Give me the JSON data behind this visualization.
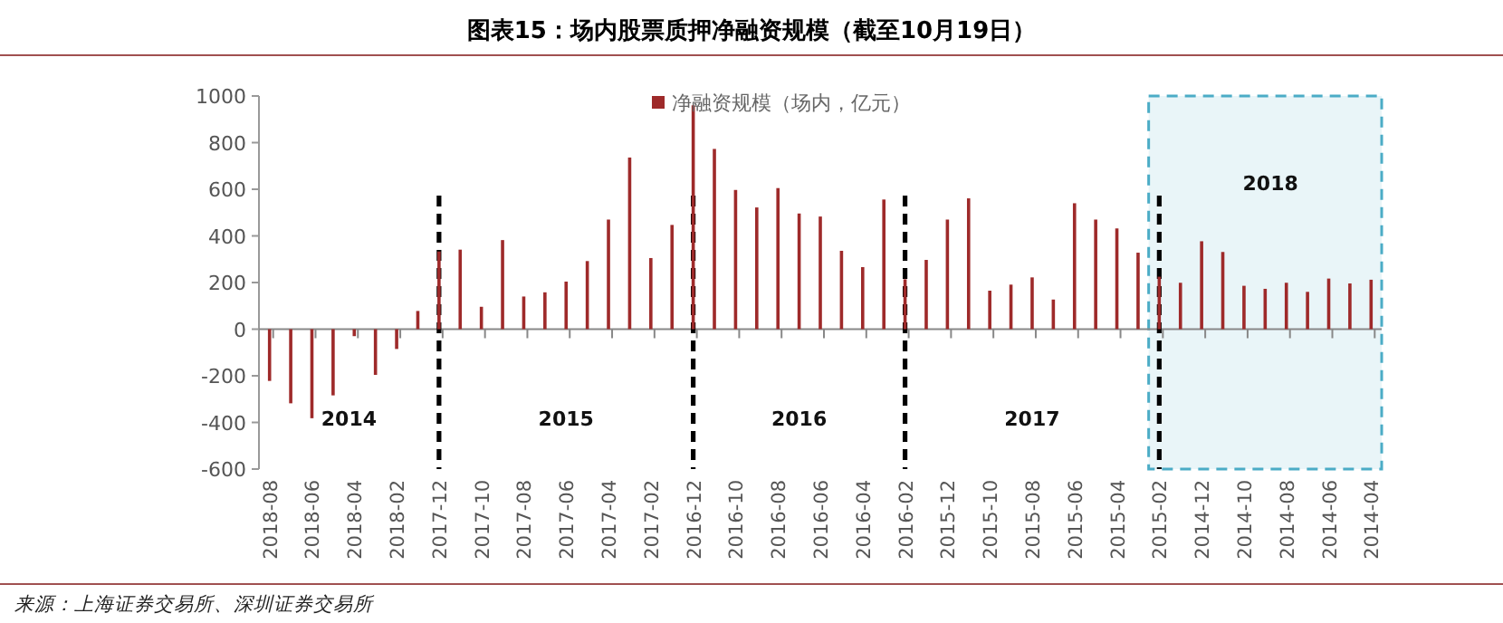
{
  "chart_data": {
    "type": "bar",
    "title": "图表15：场内股票质押净融资规模（截至10月19日）",
    "categories": [
      "2018-08",
      null,
      "2018-06",
      null,
      "2018-04",
      null,
      "2018-02",
      null,
      "2017-12",
      null,
      "2017-10",
      null,
      "2017-08",
      null,
      "2017-06",
      null,
      "2017-04",
      null,
      "2017-02",
      null,
      "2016-12",
      null,
      "2016-10",
      null,
      "2016-08",
      null,
      "2016-06",
      null,
      "2016-04",
      null,
      "2016-02",
      null,
      "2015-12",
      null,
      "2015-10",
      null,
      "2015-08",
      null,
      "2015-06",
      null,
      "2015-04",
      null,
      "2015-02",
      null,
      "2014-12",
      null,
      "2014-10",
      null,
      "2014-08",
      null,
      "2014-06",
      null,
      "2014-04"
    ],
    "series": [
      {
        "name": "净融资规模（场内，亿元）",
        "color": "#9e2a2a",
        "values": [
          -222,
          -318,
          -382,
          -284,
          -30,
          -196,
          -85,
          78,
          333,
          341,
          96,
          382,
          140,
          158,
          204,
          292,
          470,
          736,
          305,
          447,
          960,
          773,
          597,
          522,
          605,
          496,
          483,
          336,
          266,
          556,
          214,
          297,
          470,
          561,
          165,
          191,
          222,
          127,
          540,
          470,
          432,
          328,
          225,
          199,
          377,
          331,
          186,
          173,
          199,
          160,
          217,
          196,
          212
        ]
      }
    ],
    "ylim": [
      -600,
      1000
    ],
    "yticks": [
      -600,
      -400,
      -200,
      0,
      200,
      400,
      600,
      800,
      1000
    ],
    "legend": "top",
    "ref_lines": [
      {
        "axis": "x",
        "value": "2017-12",
        "color": "#000000",
        "line_style": "dashed"
      },
      {
        "axis": "x",
        "value": "2016-12",
        "color": "#000000",
        "line_style": "dashed"
      },
      {
        "axis": "x",
        "value": "2016-02",
        "color": "#000000",
        "line_style": "dashed"
      },
      {
        "axis": "x",
        "value": "2015-02",
        "color": "#000000",
        "line_style": "dashed"
      }
    ],
    "bands": [
      {
        "axis": "x",
        "from": "2015-02",
        "to": "2014-04",
        "color": "#4bacc6"
      }
    ],
    "annotations": [
      "2014",
      "2015",
      "2016",
      "2017",
      "2018",
      "来源：上海证券交易所、深圳证券交易所"
    ]
  }
}
